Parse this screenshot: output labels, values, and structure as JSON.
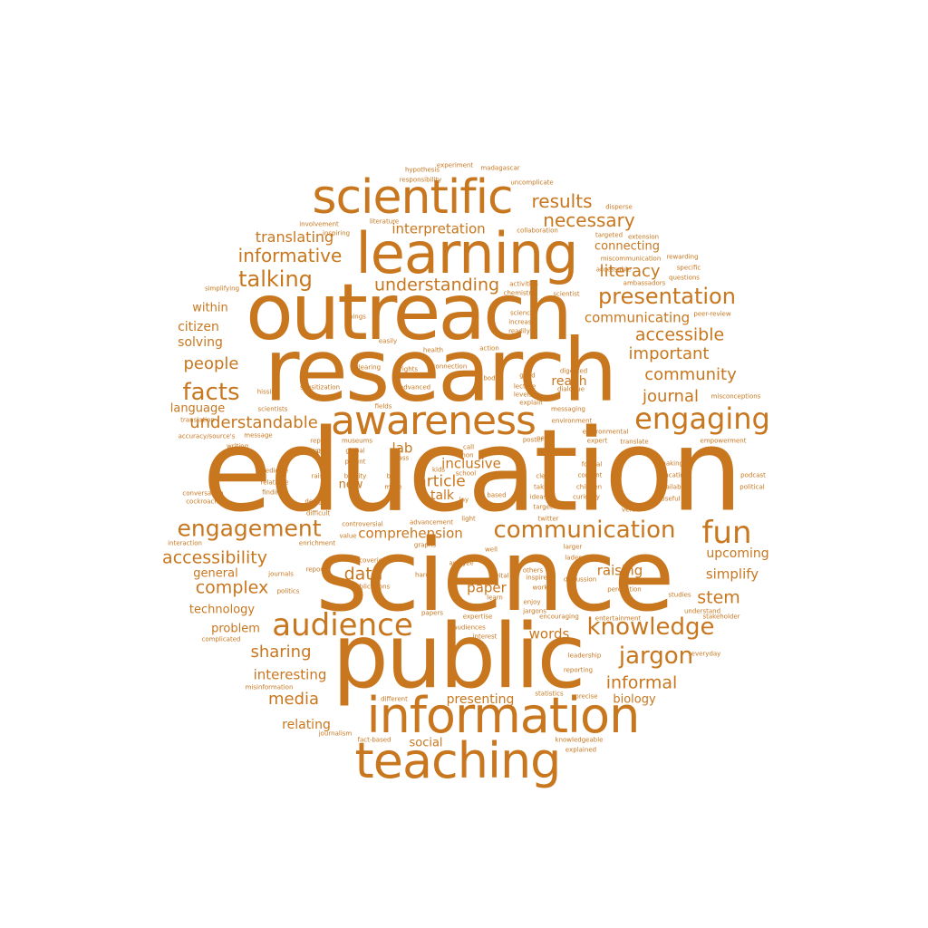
{
  "color": "#c8771f",
  "words": [
    "education",
    "science",
    "public",
    "research",
    "outreach",
    "learning",
    "scientific",
    "information",
    "awareness",
    "teaching",
    "audience",
    "engaging",
    "communication",
    "fun",
    "knowledge",
    "presentation",
    "engagement",
    "jargon",
    "facts",
    "talking",
    "informative",
    "accessible",
    "understandable",
    "community",
    "accessibility",
    "results",
    "necessary",
    "understanding",
    "important",
    "people",
    "complex",
    "translating",
    "data",
    "stem",
    "informal",
    "sharing",
    "literacy",
    "media",
    "interpretation",
    "communicating",
    "journal",
    "comprehension",
    "paper",
    "article",
    "inclusive",
    "raising",
    "simplify",
    "upcoming",
    "citizen",
    "solving",
    "within",
    "language",
    "general",
    "technology",
    "problem",
    "interesting",
    "relating",
    "presenting",
    "biology",
    "social",
    "words",
    "connecting",
    "reach",
    "lab",
    "new",
    "talk",
    "hypothesis",
    "experiment",
    "madagascar",
    "responsibility",
    "uncomplicate",
    "disperse",
    "involvement",
    "literature",
    "targeted",
    "extension",
    "inspiring",
    "collaboration",
    "miscommunication",
    "rewarding",
    "specific",
    "simplifying",
    "accessable",
    "activities",
    "questions",
    "ambassadors",
    "chemistry",
    "scientist",
    "peer-review",
    "sciences",
    "increase",
    "readily",
    "things",
    "easily",
    "health",
    "action",
    "clearing",
    "rights",
    "connection",
    "body",
    "digested",
    "good",
    "hissing",
    "sensitization",
    "advanced",
    "lecture",
    "levels",
    "dialogue",
    "explain",
    "misconceptions",
    "scientists",
    "fields",
    "messaging",
    "environment",
    "translation",
    "message",
    "accuracy/source's",
    "environmental",
    "non",
    "call",
    "writing",
    "global",
    "mass",
    "report",
    "museums",
    "poster",
    "news",
    "expert",
    "translate",
    "empowerment",
    "medicine",
    "date",
    "patent",
    "brevity",
    "kids",
    "formal",
    "making",
    "raise",
    "relatable",
    "big",
    "school",
    "clear",
    "content",
    "educating",
    "podcast",
    "findings",
    "make",
    "taking",
    "children",
    "available",
    "political",
    "conversation",
    "based",
    "ideas",
    "curiosity",
    "cockroaches",
    "difficult",
    "light",
    "target",
    "verbal",
    "design",
    "lay",
    "useful",
    "twitter",
    "controversial",
    "advancement",
    "value",
    "larger",
    "interaction",
    "enrichment",
    "graphs",
    "well",
    "laden",
    "vital",
    "discussion",
    "journals",
    "analyze",
    "others",
    "inspire",
    "work",
    "perception",
    "publications",
    "politics",
    "discoveries",
    "hard",
    "learn",
    "enjoy",
    "reports",
    "studies",
    "understand",
    "jargons",
    "encouraging",
    "entertainment",
    "papers",
    "expertise",
    "stakeholder",
    "complicated",
    "audiences",
    "interest",
    "leadership",
    "everyday",
    "misinformation",
    "reporting",
    "different",
    "statistics",
    "precise",
    "journalism",
    "knowledgeable",
    "fact-based",
    "explained",
    "types"
  ]
}
